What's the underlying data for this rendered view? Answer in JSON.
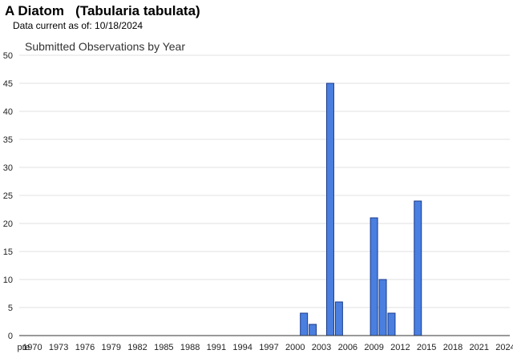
{
  "header": {
    "species_title": "A Diatom   (Tabularia tabulata)",
    "data_current": "Data current as of: 10/18/2024"
  },
  "chart_data": {
    "type": "bar",
    "title": "Submitted Observations by Year",
    "xlabel": "",
    "ylabel": "",
    "ylim": [
      0,
      50
    ],
    "y_ticks": [
      0,
      5,
      10,
      15,
      20,
      25,
      30,
      35,
      40,
      45,
      50
    ],
    "x_tick_labels": [
      "pre",
      "1970",
      "1973",
      "1976",
      "1979",
      "1982",
      "1985",
      "1988",
      "1991",
      "1994",
      "1997",
      "2000",
      "2003",
      "2006",
      "2009",
      "2012",
      "2015",
      "2018",
      "2021",
      "2024"
    ],
    "categories": [
      "pre",
      "1970",
      "1971",
      "1972",
      "1973",
      "1974",
      "1975",
      "1976",
      "1977",
      "1978",
      "1979",
      "1980",
      "1981",
      "1982",
      "1983",
      "1984",
      "1985",
      "1986",
      "1987",
      "1988",
      "1989",
      "1990",
      "1991",
      "1992",
      "1993",
      "1994",
      "1995",
      "1996",
      "1997",
      "1998",
      "1999",
      "2000",
      "2001",
      "2002",
      "2003",
      "2004",
      "2005",
      "2006",
      "2007",
      "2008",
      "2009",
      "2010",
      "2011",
      "2012",
      "2013",
      "2014",
      "2015",
      "2016",
      "2017",
      "2018",
      "2019",
      "2020",
      "2021",
      "2022",
      "2023",
      "2024"
    ],
    "values": [
      0,
      0,
      0,
      0,
      0,
      0,
      0,
      0,
      0,
      0,
      0,
      0,
      0,
      0,
      0,
      0,
      0,
      0,
      0,
      0,
      0,
      0,
      0,
      0,
      0,
      0,
      0,
      0,
      0,
      0,
      0,
      0,
      4,
      2,
      0,
      45,
      6,
      0,
      0,
      0,
      21,
      10,
      4,
      0,
      0,
      24,
      0,
      0,
      0,
      0,
      0,
      0,
      0,
      0,
      0,
      0
    ],
    "grid": true,
    "colors": {
      "bar_fill": "#4a7fe0",
      "bar_stroke": "#1a3a8a",
      "grid": "#e0e0e0",
      "axis": "#333333"
    }
  }
}
